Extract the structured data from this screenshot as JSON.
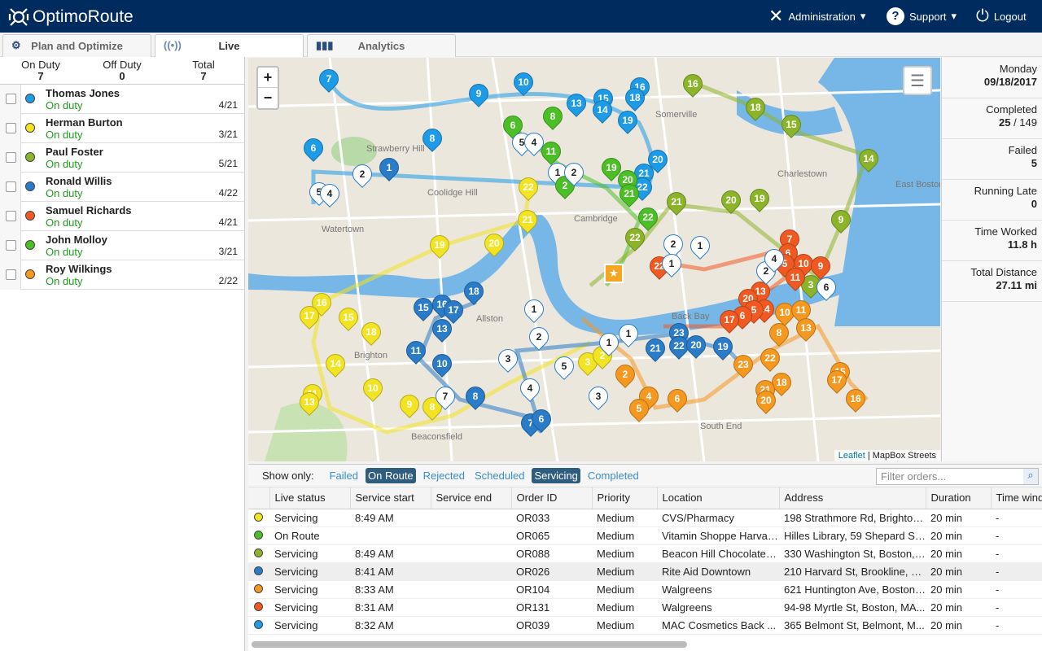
{
  "header": {
    "brand": "OptimoRoute",
    "admin": "Administration",
    "support": "Support",
    "logout": "Logout"
  },
  "tabs": [
    {
      "label": "Plan and Optimize"
    },
    {
      "label": "Live"
    },
    {
      "label": "Analytics"
    }
  ],
  "counts": {
    "on_duty_label": "On Duty",
    "on_duty": "7",
    "off_duty_label": "Off Duty",
    "off_duty": "0",
    "total_label": "Total",
    "total": "7"
  },
  "drivers": [
    {
      "name": "Thomas Jones",
      "status": "On duty",
      "progress": "4/21",
      "color": "#1e9be6"
    },
    {
      "name": "Herman Burton",
      "status": "On duty",
      "progress": "3/21",
      "color": "#f2e422"
    },
    {
      "name": "Paul Foster",
      "status": "On duty",
      "progress": "5/21",
      "color": "#8cb42a"
    },
    {
      "name": "Ronald Willis",
      "status": "On duty",
      "progress": "4/22",
      "color": "#2a7cc8"
    },
    {
      "name": "Samuel Richards",
      "status": "On duty",
      "progress": "4/21",
      "color": "#f05a22"
    },
    {
      "name": "John Molloy",
      "status": "On duty",
      "progress": "3/21",
      "color": "#4cbf26"
    },
    {
      "name": "Roy Wilkings",
      "status": "On duty",
      "progress": "2/22",
      "color": "#f5981f"
    }
  ],
  "map": {
    "zoom_in": "+",
    "zoom_out": "−",
    "attribution_link": "Leaflet",
    "attribution_text": "| MapBox Streets",
    "labels": [
      "Strawberry Hill",
      "Coolidge Hill",
      "Watertown",
      "Cambridge",
      "Charlestown",
      "East Boston",
      "Brighton",
      "Allston",
      "Beaconsfield",
      "South End",
      "Somerville",
      "Back Bay"
    ],
    "markers": [
      {
        "n": "7",
        "c": "#1e9be6"
      },
      {
        "n": "9",
        "c": "#1e9be6"
      },
      {
        "n": "10",
        "c": "#1e9be6"
      },
      {
        "n": "13",
        "c": "#1e9be6"
      },
      {
        "n": "15",
        "c": "#1e9be6"
      },
      {
        "n": "14",
        "c": "#1e9be6"
      },
      {
        "n": "16",
        "c": "#1e9be6"
      },
      {
        "n": "18",
        "c": "#1e9be6"
      },
      {
        "n": "19",
        "c": "#1e9be6"
      },
      {
        "n": "20",
        "c": "#1e9be6"
      },
      {
        "n": "21",
        "c": "#1e9be6"
      },
      {
        "n": "22",
        "c": "#1e9be6"
      },
      {
        "n": "8",
        "c": "#1e9be6"
      },
      {
        "n": "6",
        "c": "#1e9be6"
      },
      {
        "n": "5",
        "c": "#ffffff"
      },
      {
        "n": "4",
        "c": "#ffffff"
      },
      {
        "n": "6",
        "c": "#4cbf26"
      },
      {
        "n": "8",
        "c": "#4cbf26"
      },
      {
        "n": "5",
        "c": "#ffffff"
      },
      {
        "n": "4",
        "c": "#ffffff"
      },
      {
        "n": "11",
        "c": "#4cbf26"
      },
      {
        "n": "1",
        "c": "#ffffff"
      },
      {
        "n": "2",
        "c": "#4cbf26"
      },
      {
        "n": "19",
        "c": "#4cbf26"
      },
      {
        "n": "20",
        "c": "#4cbf26"
      },
      {
        "n": "21",
        "c": "#4cbf26"
      },
      {
        "n": "22",
        "c": "#4cbf26"
      },
      {
        "n": "16",
        "c": "#8cb42a"
      },
      {
        "n": "18",
        "c": "#8cb42a"
      },
      {
        "n": "15",
        "c": "#8cb42a"
      },
      {
        "n": "14",
        "c": "#8cb42a"
      },
      {
        "n": "21",
        "c": "#8cb42a"
      },
      {
        "n": "20",
        "c": "#8cb42a"
      },
      {
        "n": "19",
        "c": "#8cb42a"
      },
      {
        "n": "9",
        "c": "#8cb42a"
      },
      {
        "n": "22",
        "c": "#8cb42a"
      },
      {
        "n": "3",
        "c": "#8cb42a"
      },
      {
        "n": "22",
        "c": "#f2e422"
      },
      {
        "n": "21",
        "c": "#f2e422"
      },
      {
        "n": "19",
        "c": "#f2e422"
      },
      {
        "n": "20",
        "c": "#f2e422"
      },
      {
        "n": "16",
        "c": "#f2e422"
      },
      {
        "n": "17",
        "c": "#f2e422"
      },
      {
        "n": "15",
        "c": "#f2e422"
      },
      {
        "n": "18",
        "c": "#f2e422"
      },
      {
        "n": "14",
        "c": "#f2e422"
      },
      {
        "n": "11",
        "c": "#f2e422"
      },
      {
        "n": "13",
        "c": "#f2e422"
      },
      {
        "n": "10",
        "c": "#f2e422"
      },
      {
        "n": "9",
        "c": "#f2e422"
      },
      {
        "n": "8",
        "c": "#f2e422"
      },
      {
        "n": "7",
        "c": "#ffffff"
      },
      {
        "n": "3",
        "c": "#f2e422"
      },
      {
        "n": "2",
        "c": "#f2e422"
      },
      {
        "n": "18",
        "c": "#2a7cc8"
      },
      {
        "n": "15",
        "c": "#2a7cc8"
      },
      {
        "n": "16",
        "c": "#2a7cc8"
      },
      {
        "n": "17",
        "c": "#2a7cc8"
      },
      {
        "n": "13",
        "c": "#2a7cc8"
      },
      {
        "n": "11",
        "c": "#2a7cc8"
      },
      {
        "n": "10",
        "c": "#2a7cc8"
      },
      {
        "n": "8",
        "c": "#2a7cc8"
      },
      {
        "n": "7",
        "c": "#2a7cc8"
      },
      {
        "n": "6",
        "c": "#2a7cc8"
      },
      {
        "n": "21",
        "c": "#2a7cc8"
      },
      {
        "n": "23",
        "c": "#2a7cc8"
      },
      {
        "n": "22",
        "c": "#2a7cc8"
      },
      {
        "n": "20",
        "c": "#2a7cc8"
      },
      {
        "n": "19",
        "c": "#2a7cc8"
      },
      {
        "n": "7",
        "c": "#f05a22"
      },
      {
        "n": "6",
        "c": "#f05a22"
      },
      {
        "n": "5",
        "c": "#f05a22"
      },
      {
        "n": "10",
        "c": "#f05a22"
      },
      {
        "n": "9",
        "c": "#f05a22"
      },
      {
        "n": "11",
        "c": "#f05a22"
      },
      {
        "n": "13",
        "c": "#f05a22"
      },
      {
        "n": "20",
        "c": "#f05a22"
      },
      {
        "n": "14",
        "c": "#f05a22"
      },
      {
        "n": "5",
        "c": "#f05a22"
      },
      {
        "n": "6",
        "c": "#f05a22"
      },
      {
        "n": "17",
        "c": "#f05a22"
      },
      {
        "n": "22",
        "c": "#f05a22"
      },
      {
        "n": "2",
        "c": "#ffffff"
      },
      {
        "n": "1",
        "c": "#ffffff"
      },
      {
        "n": "10",
        "c": "#f5981f"
      },
      {
        "n": "11",
        "c": "#f5981f"
      },
      {
        "n": "8",
        "c": "#f5981f"
      },
      {
        "n": "13",
        "c": "#f5981f"
      },
      {
        "n": "22",
        "c": "#f5981f"
      },
      {
        "n": "23",
        "c": "#f5981f"
      },
      {
        "n": "18",
        "c": "#f5981f"
      },
      {
        "n": "21",
        "c": "#f5981f"
      },
      {
        "n": "20",
        "c": "#f5981f"
      },
      {
        "n": "15",
        "c": "#f5981f"
      },
      {
        "n": "17",
        "c": "#f5981f"
      },
      {
        "n": "16",
        "c": "#f5981f"
      },
      {
        "n": "6",
        "c": "#f5981f"
      },
      {
        "n": "4",
        "c": "#f5981f"
      },
      {
        "n": "5",
        "c": "#f5981f"
      },
      {
        "n": "2",
        "c": "#f5981f"
      },
      {
        "n": "3",
        "c": "#ffffff"
      },
      {
        "n": "2",
        "c": "#ffffff"
      },
      {
        "n": "1",
        "c": "#2a7cc8"
      },
      {
        "n": "1",
        "c": "#ffffff"
      },
      {
        "n": "2",
        "c": "#ffffff"
      },
      {
        "n": "3",
        "c": "#ffffff"
      },
      {
        "n": "4",
        "c": "#ffffff"
      },
      {
        "n": "5",
        "c": "#ffffff"
      },
      {
        "n": "1",
        "c": "#ffffff"
      },
      {
        "n": "1",
        "c": "#ffffff"
      },
      {
        "n": "2",
        "c": "#ffffff"
      },
      {
        "n": "4",
        "c": "#ffffff"
      },
      {
        "n": "6",
        "c": "#ffffff"
      },
      {
        "n": "1",
        "c": "#ffffff"
      },
      {
        "n": "2",
        "c": "#ffffff"
      }
    ]
  },
  "stats": [
    {
      "label": "Monday",
      "value": "09/18/2017"
    },
    {
      "label": "Completed",
      "value": "25",
      "value_total": "/ 149"
    },
    {
      "label": "Failed",
      "value": "5"
    },
    {
      "label": "Running Late",
      "value": "0"
    },
    {
      "label": "Time Worked",
      "value": "11.8 h"
    },
    {
      "label": "Total Distance",
      "value": "27.11 mi"
    }
  ],
  "orders": {
    "show_only": "Show only:",
    "filters": [
      {
        "label": "Failed",
        "on": false
      },
      {
        "label": "On Route",
        "on": true
      },
      {
        "label": "Rejected",
        "on": false
      },
      {
        "label": "Scheduled",
        "on": false
      },
      {
        "label": "Servicing",
        "on": true
      },
      {
        "label": "Completed",
        "on": false
      }
    ],
    "search_placeholder": "Filter orders...",
    "columns": [
      "Live status",
      "Service start",
      "Service end",
      "Order ID",
      "Priority",
      "Location",
      "Address",
      "Duration",
      "Time window"
    ],
    "rows": [
      {
        "color": "#f2e422",
        "status": "Servicing",
        "start": "8:49 AM",
        "end": "",
        "id": "OR033",
        "priority": "Medium",
        "location": "CVS/Pharmacy",
        "address": "198 Strathmore Rd, Brighton...",
        "duration": "20 min",
        "tw": "-"
      },
      {
        "color": "#4cbf26",
        "status": "On Route",
        "start": "",
        "end": "",
        "id": "OR065",
        "priority": "Medium",
        "location": "Vitamin Shoppe Harvar...",
        "address": "Hilles Library, 59 Shepard St,...",
        "duration": "20 min",
        "tw": "-"
      },
      {
        "color": "#8cb42a",
        "status": "Servicing",
        "start": "8:49 AM",
        "end": "",
        "id": "OR088",
        "priority": "Medium",
        "location": "Beacon Hill Chocolates...",
        "address": "330 Washington St, Boston, ...",
        "duration": "20 min",
        "tw": "-"
      },
      {
        "color": "#2a7cc8",
        "status": "Servicing",
        "start": "8:41 AM",
        "end": "",
        "id": "OR026",
        "priority": "Medium",
        "location": "Rite Aid Downtown",
        "address": "210 Harvard St, Brookline, M...",
        "duration": "20 min",
        "tw": "-"
      },
      {
        "color": "#f5981f",
        "status": "Servicing",
        "start": "8:33 AM",
        "end": "",
        "id": "OR104",
        "priority": "Medium",
        "location": "Walgreens",
        "address": "621 Huntington Ave, Boston,...",
        "duration": "20 min",
        "tw": "-"
      },
      {
        "color": "#f05a22",
        "status": "Servicing",
        "start": "8:31 AM",
        "end": "",
        "id": "OR131",
        "priority": "Medium",
        "location": "Walgreens",
        "address": "94-98 Myrtle St, Boston, MA...",
        "duration": "20 min",
        "tw": "-"
      },
      {
        "color": "#1e9be6",
        "status": "Servicing",
        "start": "8:32 AM",
        "end": "",
        "id": "OR039",
        "priority": "Medium",
        "location": "MAC Cosmetics Back ...",
        "address": "365 Belmont St, Belmont, M...",
        "duration": "20 min",
        "tw": "-"
      }
    ]
  }
}
